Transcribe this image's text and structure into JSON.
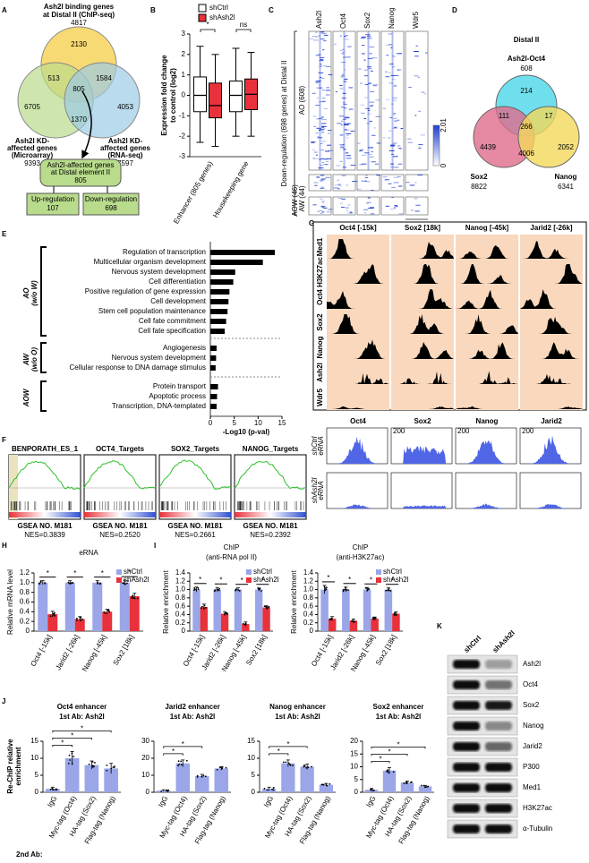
{
  "panel_labels": [
    "A",
    "B",
    "C",
    "D",
    "E",
    "F",
    "G",
    "H",
    "I",
    "J",
    "K"
  ],
  "A": {
    "top_label": [
      "Ash2l binding genes",
      "at Distal II (ChIP-seq)"
    ],
    "top_count": 4817,
    "regions": [
      2130,
      513,
      1584,
      805,
      6705,
      1370,
      4053
    ],
    "left_label": [
      "Ash2l KD-",
      "affected genes",
      "(Microarray)"
    ],
    "left_count": 9393,
    "right_label": [
      "Ash2l KD-",
      "affected genes",
      "(RNA-seq)"
    ],
    "right_count": 7597,
    "result_label": [
      "Ash2l-affected genes",
      "at Distal element II"
    ],
    "result_count": 805,
    "up_label": "Up-regulation",
    "up_count": 107,
    "down_label": "Down-regulation",
    "down_count": 698
  },
  "B": {
    "type": "box",
    "ylabel": [
      "Expression fold change",
      "to control (log2)"
    ],
    "categories": [
      "Enhancer (805 genes)",
      "Housekeeping gene"
    ],
    "series": [
      {
        "name": "shCtrl",
        "color": "#ffffff",
        "boxes": [
          {
            "min": -2.3,
            "q1": -0.8,
            "median": 0,
            "q3": 0.9,
            "max": 2.4
          },
          {
            "min": -2.0,
            "q1": -0.8,
            "median": 0,
            "q3": 0.7,
            "max": 2.3
          }
        ]
      },
      {
        "name": "shAsh2l",
        "color": "#e8313a",
        "boxes": [
          {
            "min": -2.5,
            "q1": -1.1,
            "median": -0.5,
            "q3": 0.6,
            "max": 2.0
          },
          {
            "min": -2.0,
            "q1": -0.7,
            "median": 0.05,
            "q3": 0.8,
            "max": 2.1
          }
        ]
      }
    ],
    "ylim": [
      -3,
      3
    ],
    "yticks": [
      -3,
      -2,
      -1,
      0,
      1,
      2,
      3
    ],
    "annotations": [
      "*",
      "ns"
    ]
  },
  "C": {
    "columns": [
      "Ash2l",
      "Oct4",
      "Sox2",
      "Nanog",
      "Wdr5"
    ],
    "ylabel": "Down-regulation (698 genes) at Distal II",
    "groups": [
      "AO (608)",
      "AW (44)",
      "AOW (46)"
    ],
    "colorbar_ticks": [
      2.01,
      0
    ],
    "xticks": [
      "-1k",
      "1k"
    ]
  },
  "D": {
    "title": "Distal II",
    "top_label": "Ash2l-Oct4",
    "top_count": 608,
    "left_label": "Sox2",
    "left_count": 8822,
    "right_label": "Nanog",
    "right_count": 6341,
    "regions": [
      214,
      111,
      17,
      266,
      4439,
      4006,
      2052
    ]
  },
  "E": {
    "type": "bar",
    "orientation": "horizontal",
    "color": "#000000",
    "xlabel": "-Log10 (p-val)",
    "xlim": [
      0,
      15
    ],
    "xticks": [
      0,
      5,
      10,
      15
    ],
    "groups": [
      {
        "label": [
          "AO",
          "(w/o W)"
        ],
        "categories": [
          "Regulation of transcription",
          "Multicellular organism development",
          "Nervous system development",
          "Cell differentiation",
          "Positive regulation of gene expression",
          "Cell development",
          "Stem cell population maintenance",
          "Cell fate commitment",
          "Cell fate specification"
        ],
        "values": [
          13.5,
          11,
          5.2,
          4.8,
          4.0,
          3.8,
          3.6,
          3.3,
          3.0
        ]
      },
      {
        "label": [
          "AW",
          "(w/o O)"
        ],
        "categories": [
          "Angiogenesis",
          "Nervous system development",
          "Cellular response to DNA damage stimulus"
        ],
        "values": [
          1.3,
          1.2,
          1.1
        ]
      },
      {
        "label": [
          "AOW"
        ],
        "categories": [
          "Protein transport",
          "Apoptotic process",
          "Transcription, DNA-templated"
        ],
        "values": [
          1.6,
          1.4,
          1.3
        ]
      }
    ]
  },
  "F": {
    "ylabel": "AO (w/o W)",
    "panels": [
      {
        "title": "BENPORATH_ES_1",
        "gsea": "GSEA NO. M181",
        "nes": "NES=0.3839"
      },
      {
        "title": "OCT4_Targets",
        "gsea": "GSEA NO. M181",
        "nes": "NES=0.2520"
      },
      {
        "title": "SOX2_Targets",
        "gsea": "GSEA NO. M181",
        "nes": "NES=0.2661"
      },
      {
        "title": "NANOG_Targets",
        "gsea": "GSEA NO. M181",
        "nes": "NES=0.2392"
      }
    ]
  },
  "G": {
    "regions": [
      "Oct4 [-15k]",
      "Sox2 [18k]",
      "Nanog [-45k]",
      "Jarid2 [-26k]"
    ],
    "tracks": [
      "Med1",
      "H3K27ac",
      "Oct4",
      "Sox2",
      "Nanog",
      "Ash2l",
      "Wdr5"
    ],
    "erna_genes": [
      "Oct4",
      "Sox2",
      "Nanog",
      "Jarid2"
    ],
    "erna_tracks": [
      [
        "shCtrl",
        "eRNA"
      ],
      [
        "shAsh2l",
        "eRNA"
      ]
    ],
    "erna_scale": 200
  },
  "H": {
    "type": "bar",
    "title": "eRNA",
    "ylabel": "Relative mRNA level",
    "categories": [
      "Oct4 [-15k]",
      "Jarid2 [-26k]",
      "Nanog [-45k]",
      "Sox2 [18k]"
    ],
    "series": [
      {
        "name": "shCtrl",
        "color": "#9aa6e8",
        "values": [
          1,
          1,
          1,
          1
        ],
        "errors": [
          0.04,
          0.04,
          0.04,
          0.05
        ]
      },
      {
        "name": "shAsh2l",
        "color": "#e8313a",
        "values": [
          0.35,
          0.25,
          0.4,
          0.72
        ],
        "errors": [
          0.06,
          0.05,
          0.05,
          0.06
        ]
      }
    ],
    "ylim": [
      0,
      1.2
    ],
    "yticks": [
      0,
      0.2,
      0.4,
      0.6,
      0.8,
      {
        "value": 1,
        "label": "1.0"
      },
      1.2
    ],
    "annotations": [
      "*",
      "*",
      "*",
      "*"
    ]
  },
  "I": {
    "charts": [
      {
        "type": "bar",
        "title": [
          "ChIP",
          "(anti-RNA pol II)"
        ],
        "ylabel": "Relative enrichment",
        "categories": [
          "Oct4 [-15k]",
          "Jarid2 [-26k]",
          "Nanog [-45k]",
          "Sox2 [18k]"
        ],
        "series": [
          {
            "name": "shCtrl",
            "color": "#9aa6e8",
            "values": [
              1,
              1,
              1,
              1
            ],
            "errors": [
              0.06,
              0.05,
              0.04,
              0.04
            ]
          },
          {
            "name": "shAsh2l",
            "color": "#e8313a",
            "values": [
              0.58,
              0.42,
              0.17,
              0.57
            ],
            "errors": [
              0.07,
              0.05,
              0.05,
              0.04
            ]
          }
        ],
        "ylim": [
          0,
          1.4
        ],
        "yticks": [
          0,
          0.2,
          0.4,
          0.6,
          0.8,
          {
            "value": 1,
            "label": "1.0"
          },
          1.2,
          1.4
        ],
        "annotations": [
          "*",
          "*",
          "*",
          "*"
        ]
      },
      {
        "type": "bar",
        "title": [
          "ChIP",
          "(anti-H3K27ac)"
        ],
        "ylabel": "Relative enrichment",
        "categories": [
          "Oct4 [-15k]",
          "Jarid2 [-26k]",
          "Nanog [-45k]",
          "Sox2 [18k]"
        ],
        "series": [
          {
            "name": "shCtrl",
            "color": "#9aa6e8",
            "values": [
              1,
              1,
              1,
              1
            ],
            "errors": [
              0.1,
              0.06,
              0.05,
              0.04
            ]
          },
          {
            "name": "shAsh2l",
            "color": "#e8313a",
            "values": [
              0.3,
              0.25,
              0.3,
              0.42
            ],
            "errors": [
              0.05,
              0.04,
              0.04,
              0.04
            ]
          }
        ],
        "ylim": [
          0,
          1.4
        ],
        "yticks": [
          0,
          0.2,
          0.4,
          0.6,
          0.8,
          {
            "value": 1,
            "label": "1.0"
          },
          1.2,
          1.4
        ],
        "annotations": [
          "*",
          "*",
          "*",
          "*"
        ]
      }
    ]
  },
  "J": {
    "ylabel": [
      "Re-ChIP relative",
      "enrichment"
    ],
    "second_ab_label": "2nd Ab:",
    "charts": [
      {
        "type": "bar",
        "title": [
          "Oct4 enhancer",
          "1st Ab: Ash2l"
        ],
        "categories": [
          "IgG",
          "Myc-tag (Oct4)",
          "HA-tag (Sox2)",
          "Flag-tag (Nanog)"
        ],
        "series": [
          {
            "color": "#9aa6e8",
            "values": [
              1,
              10,
              8,
              7
            ],
            "errors": [
              0.5,
              2,
              1.2,
              1.5
            ]
          }
        ],
        "ylim": [
          0,
          15
        ],
        "yticks": [
          0,
          5,
          10,
          15
        ],
        "significance": [
          "*",
          "*",
          "*"
        ]
      },
      {
        "type": "bar",
        "title": [
          "Jarid2 enhancer",
          "1st Ab: Ash2l"
        ],
        "categories": [
          "IgG",
          "Myc-tag (Oct4)",
          "HA-tag (Sox2)",
          "Flag-tag (Nanog)"
        ],
        "series": [
          {
            "color": "#9aa6e8",
            "values": [
              1,
              17,
              9.5,
              14
            ],
            "errors": [
              0.5,
              2,
              1,
              1
            ]
          }
        ],
        "ylim": [
          0,
          30
        ],
        "yticks": [
          0,
          10,
          20,
          30
        ],
        "significance": [
          "*",
          "*"
        ]
      },
      {
        "type": "bar",
        "title": [
          "Nanog enhancer",
          "1st Ab: Ash2l"
        ],
        "categories": [
          "IgG",
          "Myc-tag (Oct4)",
          "HA-tag (Sox2)",
          "Flag-tag (Nanog)"
        ],
        "series": [
          {
            "color": "#9aa6e8",
            "values": [
              1,
              8.5,
              7.5,
              2.2
            ],
            "errors": [
              0.5,
              1,
              0.8,
              0.4
            ]
          }
        ],
        "ylim": [
          0,
          15
        ],
        "yticks": [
          0,
          5,
          10,
          15
        ],
        "significance": [
          "*",
          "*"
        ]
      },
      {
        "type": "bar",
        "title": [
          "Sox2 enhancer",
          "1st Ab: Ash2l"
        ],
        "categories": [
          "IgG",
          "Myc-tag (Oct4)",
          "HA-tag (Sox2)",
          "Flag-tag (Nanog)"
        ],
        "series": [
          {
            "color": "#9aa6e8",
            "values": [
              1,
              8.5,
              3.8,
              2.3
            ],
            "errors": [
              0.5,
              1.2,
              0.6,
              0.4
            ]
          }
        ],
        "ylim": [
          0,
          20
        ],
        "yticks": [
          0,
          5,
          10,
          15,
          20
        ],
        "significance": [
          "*",
          "*",
          "*"
        ]
      }
    ]
  },
  "K": {
    "columns": [
      "shCtrl",
      "shAsh2l"
    ],
    "rows": [
      "Ash2l",
      "Oct4",
      "Sox2",
      "Nanog",
      "Jarid2",
      "P300",
      "Med1",
      "H3K27ac",
      "α-Tubulin"
    ]
  }
}
